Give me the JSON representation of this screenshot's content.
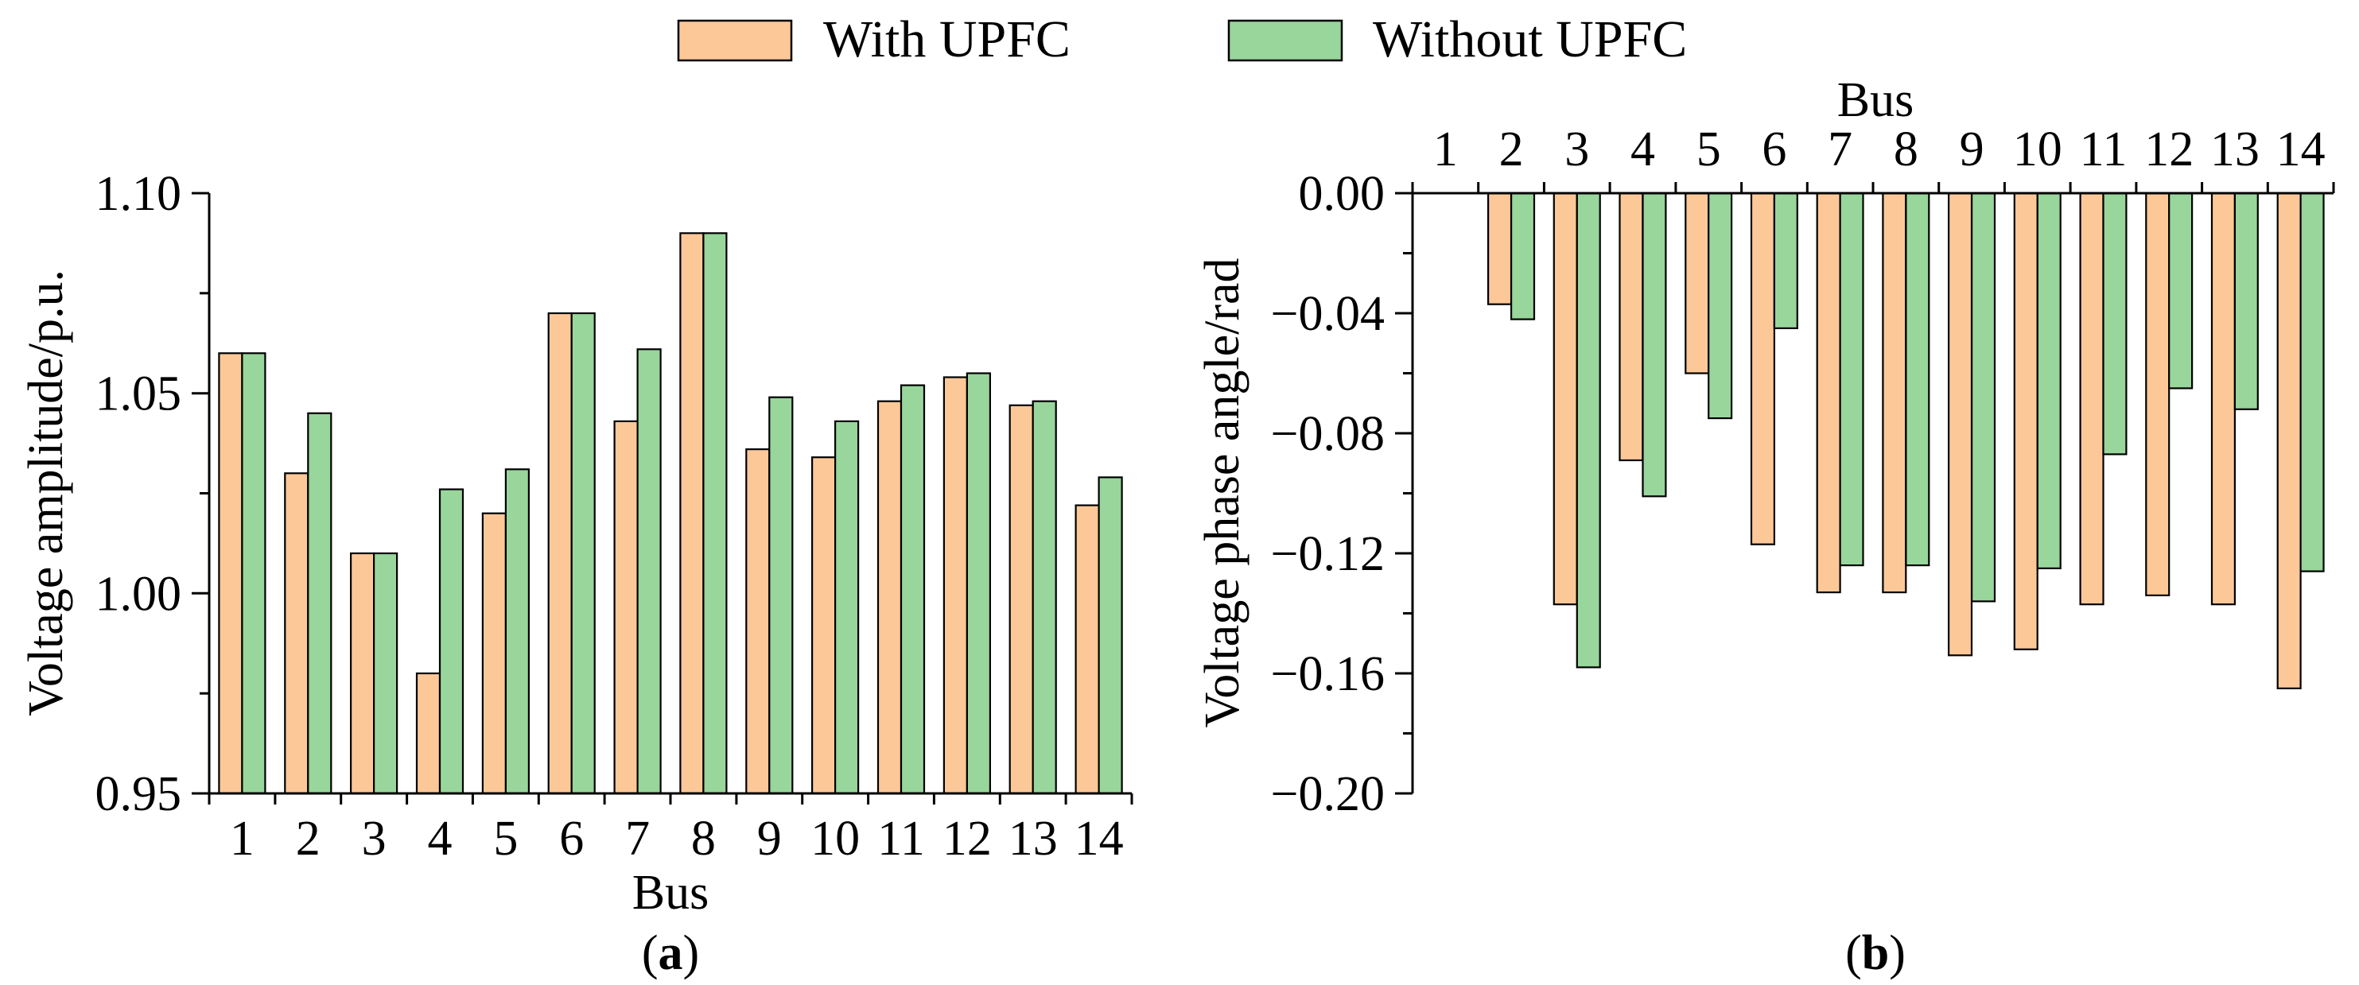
{
  "colors": {
    "with_upfc": "#fdc898",
    "without_upfc": "#98d69b",
    "stroke": "#000000",
    "background": "#ffffff"
  },
  "legend": {
    "items": [
      {
        "label": "With UPFC",
        "color_key": "with_upfc"
      },
      {
        "label": "Without UPFC",
        "color_key": "without_upfc"
      }
    ]
  },
  "chart_data": [
    {
      "type": "bar",
      "panel": "(a)",
      "panel_letter": "a",
      "xlabel": "Bus",
      "ylabel": "Voltage amplitude/p.u.",
      "categories": [
        "1",
        "2",
        "3",
        "4",
        "5",
        "6",
        "7",
        "8",
        "9",
        "10",
        "11",
        "12",
        "13",
        "14"
      ],
      "ylim": [
        0.95,
        1.1
      ],
      "yticks": [
        0.95,
        1.0,
        1.05,
        1.1
      ],
      "ytick_labels": [
        "0.95",
        "1.00",
        "1.05",
        "1.10"
      ],
      "x_axis_position": "bottom",
      "series": [
        {
          "name": "With UPFC",
          "values": [
            1.06,
            1.03,
            1.01,
            0.98,
            1.02,
            1.07,
            1.043,
            1.09,
            1.036,
            1.034,
            1.048,
            1.054,
            1.047,
            1.022
          ]
        },
        {
          "name": "Without UPFC",
          "values": [
            1.06,
            1.045,
            1.01,
            1.026,
            1.031,
            1.07,
            1.061,
            1.09,
            1.049,
            1.043,
            1.052,
            1.055,
            1.048,
            1.029
          ]
        }
      ]
    },
    {
      "type": "bar",
      "panel": "(b)",
      "panel_letter": "b",
      "xlabel": "Bus",
      "ylabel": "Voltage phase angle/rad",
      "categories": [
        "1",
        "2",
        "3",
        "4",
        "5",
        "6",
        "7",
        "8",
        "9",
        "10",
        "11",
        "12",
        "13",
        "14"
      ],
      "ylim": [
        -0.2,
        0.0
      ],
      "yticks": [
        0.0,
        -0.04,
        -0.08,
        -0.12,
        -0.16,
        -0.2
      ],
      "ytick_labels": [
        "0.00",
        "−0.04",
        "−0.08",
        "−0.12",
        "−0.16",
        "−0.20"
      ],
      "x_axis_position": "top",
      "series": [
        {
          "name": "With UPFC",
          "values": [
            0.0,
            -0.037,
            -0.137,
            -0.089,
            -0.06,
            -0.117,
            -0.133,
            -0.133,
            -0.154,
            -0.152,
            -0.137,
            -0.134,
            -0.137,
            -0.165
          ]
        },
        {
          "name": "Without UPFC",
          "values": [
            0.0,
            -0.042,
            -0.158,
            -0.101,
            -0.075,
            -0.045,
            -0.124,
            -0.124,
            -0.136,
            -0.125,
            -0.087,
            -0.065,
            -0.072,
            -0.126
          ]
        }
      ]
    }
  ]
}
